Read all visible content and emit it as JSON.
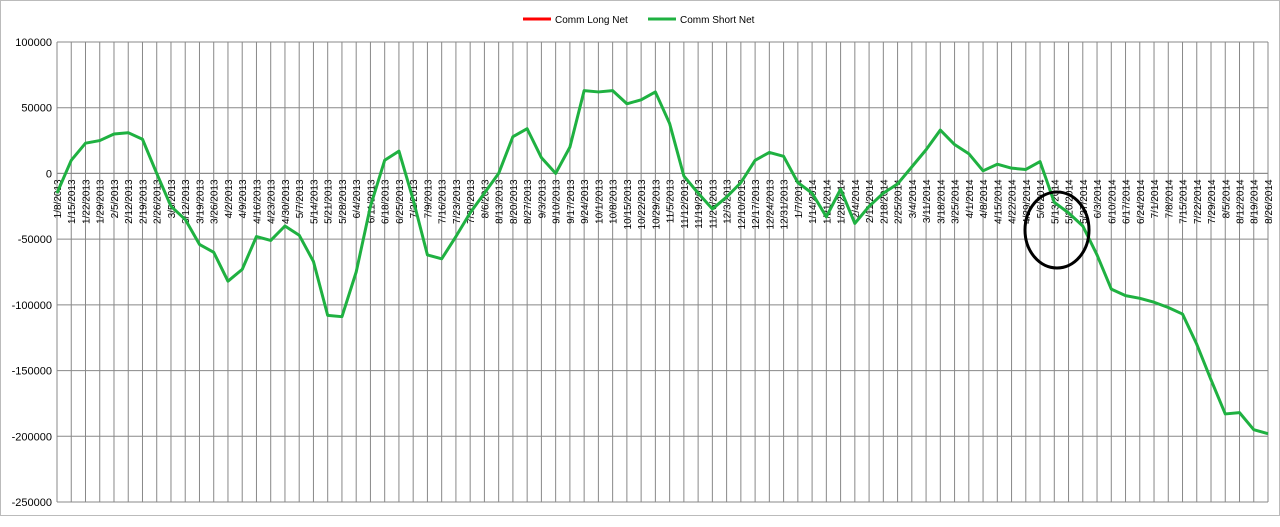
{
  "chart_data": {
    "type": "line",
    "categories": [
      "1/8/2013",
      "1/15/2013",
      "1/22/2013",
      "1/29/2013",
      "2/5/2013",
      "2/12/2013",
      "2/19/2013",
      "2/26/2013",
      "3/5/2013",
      "3/12/2013",
      "3/19/2013",
      "3/26/2013",
      "4/2/2013",
      "4/9/2013",
      "4/16/2013",
      "4/23/2013",
      "4/30/2013",
      "5/7/2013",
      "5/14/2013",
      "5/21/2013",
      "5/28/2013",
      "6/4/2013",
      "6/11/2013",
      "6/18/2013",
      "6/25/2013",
      "7/2/2013",
      "7/9/2013",
      "7/16/2013",
      "7/23/2013",
      "7/30/2013",
      "8/6/2013",
      "8/13/2013",
      "8/20/2013",
      "8/27/2013",
      "9/3/2013",
      "9/10/2013",
      "9/17/2013",
      "9/24/2013",
      "10/1/2013",
      "10/8/2013",
      "10/15/2013",
      "10/22/2013",
      "10/29/2013",
      "11/5/2013",
      "11/12/2013",
      "11/19/2013",
      "11/26/2013",
      "12/3/2013",
      "12/10/2013",
      "12/17/2013",
      "12/24/2013",
      "12/31/2013",
      "1/7/2014",
      "1/14/2014",
      "1/21/2014",
      "1/28/2014",
      "2/4/2014",
      "2/11/2014",
      "2/18/2014",
      "2/25/2014",
      "3/4/2014",
      "3/11/2014",
      "3/18/2014",
      "3/25/2014",
      "4/1/2014",
      "4/8/2014",
      "4/15/2014",
      "4/22/2014",
      "4/29/2014",
      "5/6/2014",
      "5/13/2014",
      "5/20/2014",
      "5/27/2014",
      "6/3/2014",
      "6/10/2014",
      "6/17/2014",
      "6/24/2014",
      "7/1/2014",
      "7/8/2014",
      "7/15/2014",
      "7/22/2014",
      "7/29/2014",
      "8/5/2014",
      "8/12/2014",
      "8/19/2014",
      "8/26/2014"
    ],
    "series": [
      {
        "name": "Comm Long Net",
        "color": "#ff0000",
        "values": [
          null,
          null,
          null,
          null,
          null,
          null,
          null,
          null,
          null,
          null,
          null,
          null,
          null,
          null,
          null,
          null,
          null,
          null,
          null,
          null,
          null,
          null,
          null,
          null,
          null,
          null,
          null,
          null,
          null,
          null,
          null,
          null,
          null,
          null,
          null,
          null,
          null,
          null,
          null,
          null,
          null,
          null,
          null,
          null,
          null,
          null,
          null,
          null,
          null,
          null,
          null,
          null,
          null,
          null,
          null,
          null,
          null,
          null,
          null,
          null,
          null,
          null,
          null,
          null,
          null,
          null,
          null,
          null,
          null,
          null,
          null,
          null,
          null,
          null,
          null,
          null,
          null,
          null,
          null,
          null,
          null,
          null,
          null,
          null,
          null,
          null
        ]
      },
      {
        "name": "Comm Short Net",
        "color": "#1fb141",
        "values": [
          -15000,
          10000,
          23000,
          25000,
          30000,
          31000,
          26000,
          0,
          -25000,
          -35000,
          -54000,
          -60000,
          -82000,
          -73000,
          -48000,
          -51000,
          -40000,
          -47000,
          -67000,
          -108000,
          -109000,
          -75000,
          -25000,
          10000,
          17000,
          -20000,
          -62000,
          -65000,
          -48000,
          -30000,
          -15000,
          0,
          28000,
          34000,
          12000,
          0,
          20000,
          63000,
          62000,
          63000,
          53000,
          56000,
          62000,
          38000,
          -2000,
          -15000,
          -27000,
          -18000,
          -7000,
          10000,
          16000,
          13000,
          -7000,
          -15000,
          -33000,
          -12000,
          -38000,
          -25000,
          -15000,
          -8000,
          5000,
          18000,
          33000,
          22000,
          15000,
          2000,
          7000,
          4000,
          3000,
          9000,
          -22000,
          -30000,
          -40000,
          -62000,
          -88000,
          -93000,
          -95000,
          -98000,
          -102000,
          -107000,
          -130000,
          -157000,
          -183000,
          -182000,
          -195000,
          -198000
        ]
      }
    ],
    "ylim": [
      -250000,
      100000
    ],
    "yticks": [
      -250000,
      -200000,
      -150000,
      -100000,
      -50000,
      0,
      50000,
      100000
    ],
    "grid": true
  }
}
